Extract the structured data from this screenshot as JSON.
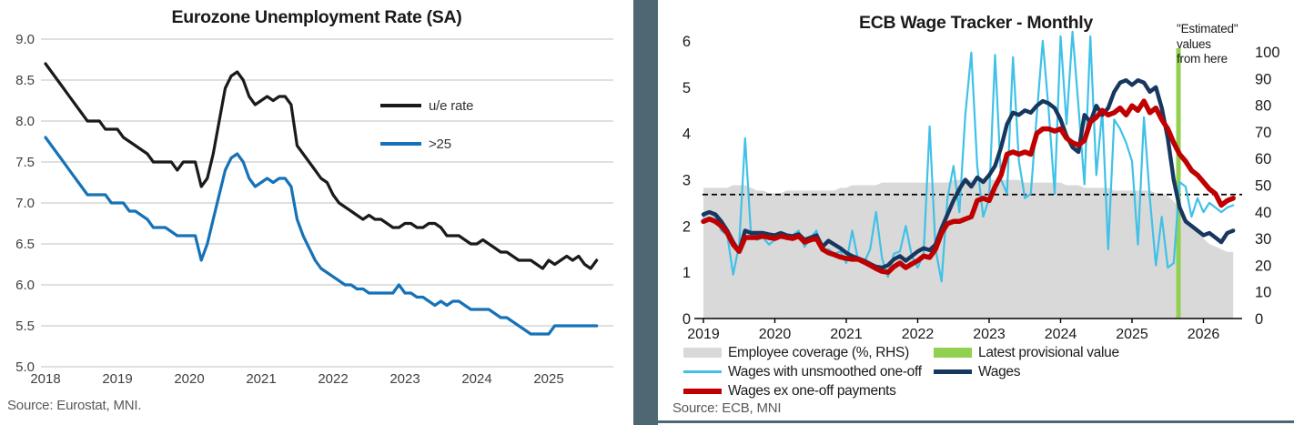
{
  "divider_color": "#4d6872",
  "chart_data": [
    {
      "type": "line",
      "title": "Eurozone Unemployment Rate (SA)",
      "source": "Source: Eurostat, MNI.",
      "x_start_year": 2018,
      "points_per_year": 12,
      "x_ticks": [
        2018,
        2019,
        2020,
        2021,
        2022,
        2023,
        2024,
        2025
      ],
      "y_ticks": [
        "9.0",
        "8.5",
        "8.0",
        "7.5",
        "7.0",
        "6.5",
        "6.0",
        "5.5",
        "5.0"
      ],
      "ylim": [
        5.0,
        9.0
      ],
      "grid": "horizontal",
      "grid_color": "#d6d6d6",
      "legend_position": "center-right",
      "series": [
        {
          "name": "u/e rate",
          "color": "#1a1a1a",
          "width": 3.2,
          "values": [
            8.7,
            8.6,
            8.5,
            8.4,
            8.3,
            8.2,
            8.1,
            8.0,
            8.0,
            8.0,
            7.9,
            7.9,
            7.9,
            7.8,
            7.75,
            7.7,
            7.65,
            7.6,
            7.5,
            7.5,
            7.5,
            7.5,
            7.4,
            7.5,
            7.5,
            7.5,
            7.2,
            7.3,
            7.6,
            8.0,
            8.4,
            8.55,
            8.6,
            8.5,
            8.3,
            8.2,
            8.25,
            8.3,
            8.25,
            8.3,
            8.3,
            8.2,
            7.7,
            7.6,
            7.5,
            7.4,
            7.3,
            7.25,
            7.1,
            7.0,
            6.95,
            6.9,
            6.85,
            6.8,
            6.85,
            6.8,
            6.8,
            6.75,
            6.7,
            6.7,
            6.75,
            6.75,
            6.7,
            6.7,
            6.75,
            6.75,
            6.7,
            6.6,
            6.6,
            6.6,
            6.55,
            6.5,
            6.5,
            6.55,
            6.5,
            6.45,
            6.4,
            6.4,
            6.35,
            6.3,
            6.3,
            6.3,
            6.25,
            6.2,
            6.3,
            6.25,
            6.3,
            6.35,
            6.3,
            6.35,
            6.25,
            6.2,
            6.3
          ]
        },
        {
          "name": ">25",
          "color": "#1672b8",
          "width": 3.2,
          "values": [
            7.8,
            7.7,
            7.6,
            7.5,
            7.4,
            7.3,
            7.2,
            7.1,
            7.1,
            7.1,
            7.1,
            7.0,
            7.0,
            7.0,
            6.9,
            6.9,
            6.85,
            6.8,
            6.7,
            6.7,
            6.7,
            6.65,
            6.6,
            6.6,
            6.6,
            6.6,
            6.3,
            6.5,
            6.8,
            7.1,
            7.4,
            7.55,
            7.6,
            7.5,
            7.3,
            7.2,
            7.25,
            7.3,
            7.25,
            7.3,
            7.3,
            7.2,
            6.8,
            6.6,
            6.45,
            6.3,
            6.2,
            6.15,
            6.1,
            6.05,
            6.0,
            6.0,
            5.95,
            5.95,
            5.9,
            5.9,
            5.9,
            5.9,
            5.9,
            6.0,
            5.9,
            5.9,
            5.85,
            5.85,
            5.8,
            5.75,
            5.8,
            5.75,
            5.8,
            5.8,
            5.75,
            5.7,
            5.7,
            5.7,
            5.7,
            5.65,
            5.6,
            5.6,
            5.55,
            5.5,
            5.45,
            5.4,
            5.4,
            5.4,
            5.4,
            5.5,
            5.5,
            5.5,
            5.5,
            5.5,
            5.5,
            5.5,
            5.5
          ]
        }
      ]
    },
    {
      "type": "line+area",
      "title": "ECB Wage Tracker - Monthly",
      "source": "Source: ECB, MNI",
      "annotation": "\"Estimated\"\nvalues\nfrom here",
      "x_start_year": 2019,
      "points_per_year": 12,
      "x_ticks": [
        2019,
        2020,
        2021,
        2022,
        2023,
        2024,
        2025,
        2026
      ],
      "left_ticks": [
        "6",
        "5",
        "4",
        "3",
        "2",
        "1",
        "0"
      ],
      "right_ticks": [
        "100",
        "90",
        "80",
        "70",
        "60",
        "50",
        "40",
        "30",
        "20",
        "10",
        "0"
      ],
      "left_ylim": [
        0,
        6
      ],
      "right_ylim": [
        0,
        100
      ],
      "dashed_value": 2.68,
      "green_line_year": 2025.65,
      "green_color": "#92d050",
      "coverage": {
        "name": "Employee coverage (%, RHS)",
        "color": "#d9d9d9",
        "axis": "right",
        "values": [
          49,
          49,
          49,
          49,
          49,
          50,
          50,
          50,
          49,
          48,
          48,
          47,
          47,
          47,
          48,
          48,
          48,
          48,
          48,
          48,
          48,
          48,
          48,
          49,
          49,
          50,
          50,
          50,
          50,
          50,
          51,
          51,
          51,
          51,
          51,
          51,
          51,
          51,
          51,
          51,
          51,
          51,
          52,
          52,
          52,
          52,
          51,
          51,
          52,
          52,
          52,
          52,
          52,
          52,
          51,
          51,
          51,
          51,
          51,
          51,
          51,
          50,
          50,
          50,
          49,
          49,
          49,
          49,
          49,
          48,
          48,
          48,
          48,
          48,
          48,
          48,
          47,
          47,
          46,
          44,
          41,
          38,
          35,
          32,
          30,
          28,
          27,
          26,
          25,
          25
        ]
      },
      "series": [
        {
          "name": "Wages with unsmoothed one-off",
          "color": "#3fc1e8",
          "width": 2.2,
          "values": [
            2.2,
            2.3,
            2.2,
            1.9,
            1.8,
            0.95,
            1.6,
            3.9,
            1.8,
            1.7,
            1.75,
            1.6,
            1.7,
            1.85,
            1.75,
            1.8,
            1.9,
            1.55,
            1.75,
            1.9,
            1.45,
            1.5,
            1.4,
            1.45,
            1.2,
            1.9,
            1.25,
            1.2,
            1.5,
            2.3,
            1.3,
            0.9,
            1.4,
            1.45,
            2.0,
            1.35,
            1.1,
            1.4,
            4.15,
            1.5,
            0.8,
            2.6,
            3.3,
            2.3,
            4.4,
            5.75,
            3.3,
            2.2,
            2.6,
            5.7,
            3.0,
            2.7,
            5.65,
            3.4,
            2.6,
            2.7,
            4.4,
            6.0,
            4.5,
            2.7,
            6.1,
            4.2,
            6.2,
            4.6,
            2.9,
            6.1,
            3.1,
            4.5,
            1.5,
            4.3,
            4.1,
            3.8,
            3.4,
            1.6,
            4.35,
            2.6,
            1.15,
            2.2,
            1.1,
            1.2,
            2.95,
            2.85,
            2.2,
            2.6,
            2.3,
            2.5,
            2.4,
            2.3,
            2.4,
            2.45
          ]
        },
        {
          "name": "Wages",
          "color": "#17375e",
          "width": 4.4,
          "values": [
            2.25,
            2.3,
            2.25,
            2.1,
            1.9,
            1.65,
            1.45,
            1.9,
            1.85,
            1.85,
            1.85,
            1.82,
            1.8,
            1.85,
            1.8,
            1.78,
            1.82,
            1.7,
            1.75,
            1.8,
            1.55,
            1.68,
            1.6,
            1.52,
            1.42,
            1.35,
            1.3,
            1.25,
            1.18,
            1.12,
            1.1,
            1.15,
            1.28,
            1.35,
            1.25,
            1.35,
            1.45,
            1.52,
            1.48,
            1.6,
            1.95,
            2.25,
            2.55,
            2.8,
            3.0,
            2.85,
            3.05,
            2.95,
            3.1,
            3.3,
            3.7,
            4.2,
            4.45,
            4.4,
            4.5,
            4.45,
            4.6,
            4.7,
            4.65,
            4.55,
            4.3,
            3.95,
            3.7,
            3.6,
            4.4,
            4.25,
            4.6,
            4.4,
            4.55,
            4.9,
            5.1,
            5.15,
            5.05,
            5.15,
            5.1,
            4.9,
            5.0,
            4.55,
            3.9,
            3.0,
            2.4,
            2.1,
            2.0,
            1.9,
            1.8,
            1.85,
            1.75,
            1.65,
            1.85,
            1.9
          ]
        },
        {
          "name": "Wages ex one-off payments",
          "color": "#c00000",
          "width": 5.5,
          "values": [
            2.1,
            2.15,
            2.1,
            2.0,
            1.85,
            1.6,
            1.45,
            1.75,
            1.75,
            1.75,
            1.78,
            1.75,
            1.73,
            1.78,
            1.75,
            1.73,
            1.78,
            1.65,
            1.7,
            1.73,
            1.5,
            1.42,
            1.38,
            1.33,
            1.3,
            1.28,
            1.28,
            1.22,
            1.15,
            1.08,
            1.02,
            1.0,
            1.12,
            1.2,
            1.1,
            1.18,
            1.25,
            1.35,
            1.32,
            1.5,
            1.85,
            2.05,
            2.1,
            2.1,
            2.15,
            2.2,
            2.55,
            2.6,
            2.55,
            2.85,
            3.1,
            3.55,
            3.6,
            3.55,
            3.6,
            3.55,
            4.0,
            4.1,
            4.1,
            4.05,
            4.1,
            3.9,
            3.8,
            3.75,
            3.85,
            4.25,
            4.35,
            4.5,
            4.4,
            4.45,
            4.55,
            4.4,
            4.6,
            4.5,
            4.7,
            4.45,
            4.55,
            4.3,
            4.1,
            3.8,
            3.55,
            3.4,
            3.2,
            3.1,
            2.95,
            2.8,
            2.7,
            2.45,
            2.55,
            2.6
          ]
        }
      ],
      "legend": [
        {
          "label": "Employee coverage (%, RHS)",
          "color": "#d9d9d9"
        },
        {
          "label": "Latest provisional value",
          "color": "#92d050"
        },
        {
          "label": "Wages with unsmoothed one-off",
          "color": "#3fc1e8"
        },
        {
          "label": "Wages",
          "color": "#17375e"
        },
        {
          "label": "Wages ex one-off payments",
          "color": "#c00000"
        }
      ]
    }
  ]
}
